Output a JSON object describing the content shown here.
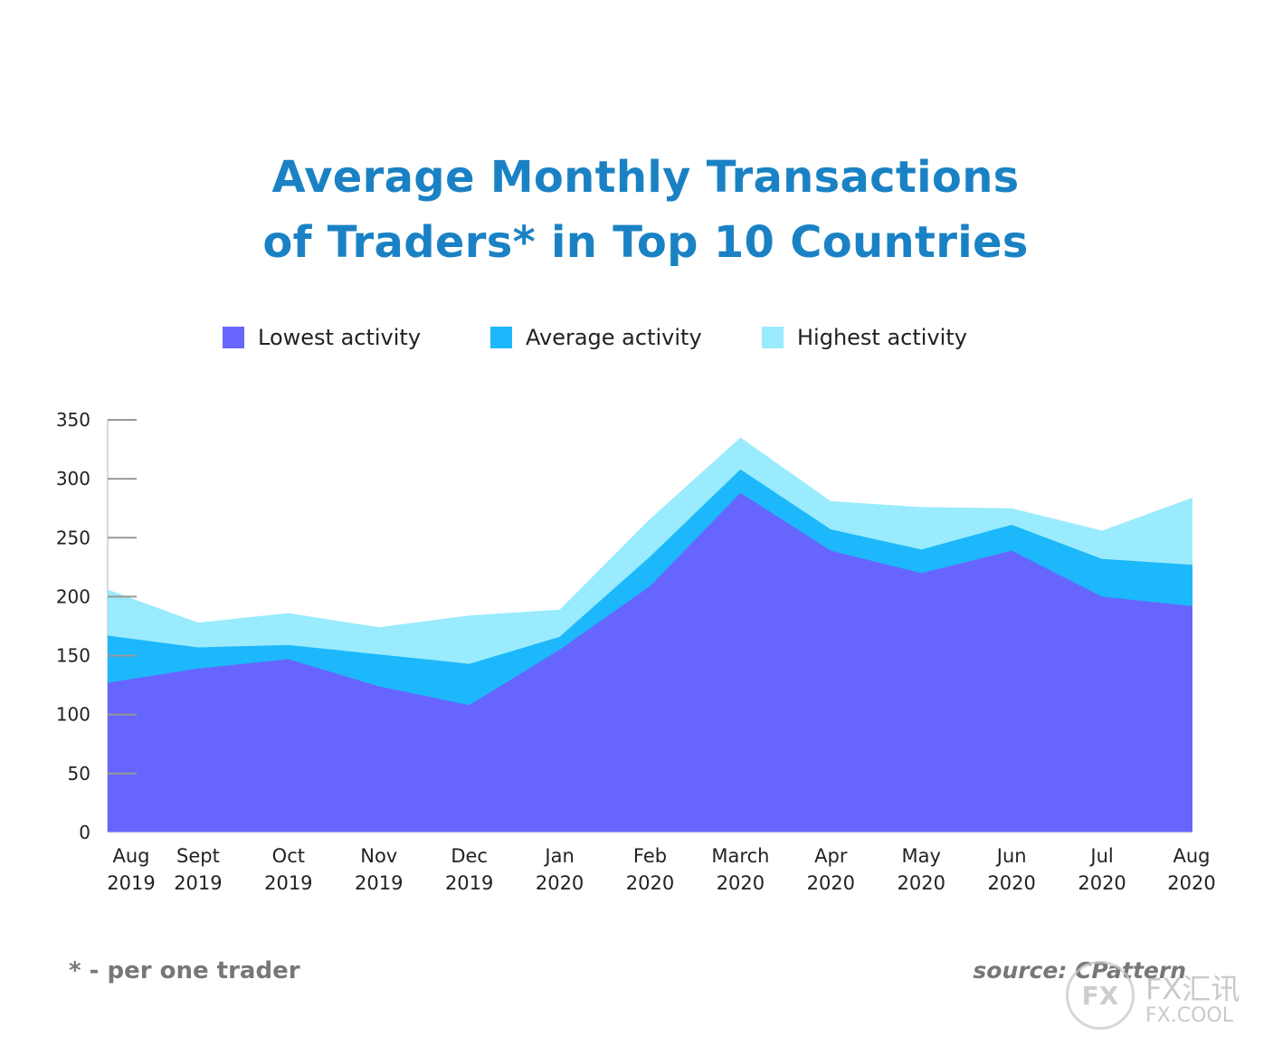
{
  "title": {
    "line1": "Average Monthly Transactions",
    "line2": "of Traders* in Top 10 Countries"
  },
  "legend": [
    {
      "label": "Lowest activity",
      "color": "#6666ff"
    },
    {
      "label": "Average activity",
      "color": "#1cb8fb"
    },
    {
      "label": "Highest activity",
      "color": "#99ebfd"
    }
  ],
  "chart_data": {
    "type": "area",
    "ylim": [
      0,
      350
    ],
    "yticks": [
      "0",
      "50",
      "100",
      "150",
      "200",
      "250",
      "300",
      "350"
    ],
    "categories": [
      [
        "Aug",
        "2019"
      ],
      [
        "Sept",
        "2019"
      ],
      [
        "Oct",
        "2019"
      ],
      [
        "Nov",
        "2019"
      ],
      [
        "Dec",
        "2019"
      ],
      [
        "Jan",
        "2020"
      ],
      [
        "Feb",
        "2020"
      ],
      [
        "March",
        "2020"
      ],
      [
        "Apr",
        "2020"
      ],
      [
        "May",
        "2020"
      ],
      [
        "Jun",
        "2020"
      ],
      [
        "Jul",
        "2020"
      ],
      [
        "Aug",
        "2020"
      ]
    ],
    "series": [
      {
        "name": "Lowest activity",
        "color": "#6666ff",
        "values": [
          127,
          139,
          147,
          124,
          108,
          155,
          209,
          288,
          239,
          220,
          239,
          200,
          192
        ]
      },
      {
        "name": "Average activity",
        "color": "#1cb8fb",
        "values": [
          167,
          157,
          159,
          151,
          143,
          166,
          234,
          308,
          257,
          240,
          261,
          232,
          227
        ]
      },
      {
        "name": "Highest activity",
        "color": "#99ebfd",
        "values": [
          206,
          178,
          186,
          174,
          184,
          189,
          266,
          335,
          281,
          276,
          275,
          256,
          284
        ]
      }
    ]
  },
  "footnote": "* - per one trader",
  "source": "source: CPattern",
  "watermark": {
    "badge": "FX",
    "line1": "FX汇讯",
    "line2": "FX.COOL"
  }
}
